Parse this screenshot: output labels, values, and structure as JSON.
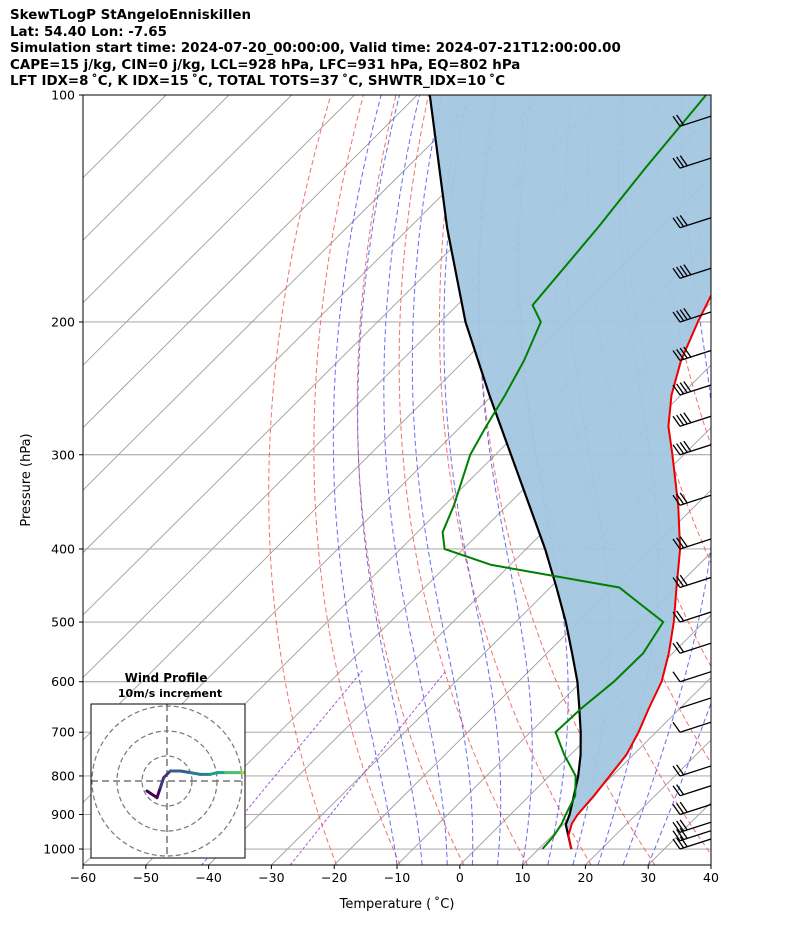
{
  "header": {
    "line1": "SkewTLogP StAngeloEnniskillen",
    "line2": "Lat: 54.40   Lon: -7.65",
    "line3": "Simulation start time: 2024-07-20_00:00:00, Valid time: 2024-07-21T12:00:00.00",
    "line4": "CAPE=15 j/kg, CIN=0 j/kg, LCL=928 hPa, LFC=931 hPa, EQ=802 hPa",
    "line5": "LFT IDX=8 ˚C, K IDX=15 ˚C, TOTAL TOTS=37 ˚C, SHWTR_IDX=10 ˚C"
  },
  "chart_data": {
    "type": "line",
    "subtype": "skew-T log-P",
    "xlabel": "Temperature ( ˚C)",
    "ylabel": "Pressure (hPa)",
    "xlim": [
      -60,
      40
    ],
    "ylim": [
      1050,
      100
    ],
    "y_scale": "log",
    "x_ticks": [
      "−60",
      "−50",
      "−40",
      "−30",
      "−20",
      "−10",
      "0",
      "10",
      "20",
      "30",
      "40"
    ],
    "y_ticks": [
      "100",
      "200",
      "300",
      "400",
      "500",
      "600",
      "700",
      "800",
      "900",
      "1000"
    ],
    "grid": true,
    "colors": {
      "temperature": "#ee0000",
      "dewpoint": "#008000",
      "parcel": "#000000",
      "cape_fill": "#a3c6e0",
      "isotherm": "#9e9e9e",
      "dry_adiabat": "#f06060",
      "moist_adiabat": "#5a5aee",
      "mixing_ratio": "#9a4ad0"
    },
    "series": [
      {
        "key": "temperature",
        "points": [
          [
            1000,
            15.2
          ],
          [
            960,
            12.6
          ],
          [
            925,
            11.2
          ],
          [
            900,
            10.7
          ],
          [
            850,
            10.3
          ],
          [
            800,
            9.6
          ],
          [
            750,
            8.9
          ],
          [
            700,
            7.2
          ],
          [
            650,
            5.0
          ],
          [
            600,
            2.8
          ],
          [
            550,
            -0.6
          ],
          [
            500,
            -4.8
          ],
          [
            450,
            -9.9
          ],
          [
            400,
            -15.5
          ],
          [
            350,
            -22.8
          ],
          [
            300,
            -31.8
          ],
          [
            275,
            -37.0
          ],
          [
            250,
            -41.5
          ],
          [
            225,
            -45.5
          ],
          [
            200,
            -49.0
          ],
          [
            175,
            -52.5
          ],
          [
            150,
            -54.2
          ],
          [
            125,
            -54.5
          ],
          [
            110,
            -57.5
          ],
          [
            100,
            -61.5
          ]
        ]
      },
      {
        "key": "dewpoint",
        "points": [
          [
            1000,
            10.6
          ],
          [
            960,
            10.3
          ],
          [
            925,
            9.6
          ],
          [
            900,
            8.8
          ],
          [
            850,
            7.3
          ],
          [
            800,
            4.2
          ],
          [
            750,
            -1.0
          ],
          [
            700,
            -6.0
          ],
          [
            650,
            -5.7
          ],
          [
            600,
            -4.8
          ],
          [
            550,
            -4.7
          ],
          [
            500,
            -6.5
          ],
          [
            450,
            -19.0
          ],
          [
            420,
            -43.0
          ],
          [
            400,
            -53.0
          ],
          [
            380,
            -56.0
          ],
          [
            350,
            -58.5
          ],
          [
            300,
            -64.0
          ],
          [
            275,
            -66.0
          ],
          [
            250,
            -68.0
          ],
          [
            225,
            -70.5
          ],
          [
            200,
            -74.0
          ],
          [
            190,
            -78.0
          ],
          [
            150,
            -80.0
          ],
          [
            125,
            -82.0
          ],
          [
            100,
            -84.0
          ]
        ]
      },
      {
        "key": "parcel",
        "points": [
          [
            1000,
            15.2
          ],
          [
            928,
            10.4
          ],
          [
            900,
            9.4
          ],
          [
            850,
            7.1
          ],
          [
            800,
            4.6
          ],
          [
            750,
            1.6
          ],
          [
            700,
            -2.0
          ],
          [
            650,
            -6.1
          ],
          [
            600,
            -10.6
          ],
          [
            550,
            -16.0
          ],
          [
            500,
            -22.0
          ],
          [
            450,
            -29.0
          ],
          [
            400,
            -37.0
          ],
          [
            350,
            -46.5
          ],
          [
            300,
            -57.5
          ],
          [
            250,
            -70.5
          ],
          [
            200,
            -86.0
          ],
          [
            150,
            -104.0
          ],
          [
            100,
            -128.0
          ]
        ]
      }
    ],
    "wind_barbs": [
      {
        "p": 1000,
        "barbs": 3
      },
      {
        "p": 975,
        "barbs": 3
      },
      {
        "p": 950,
        "barbs": 3
      },
      {
        "p": 900,
        "barbs": 3
      },
      {
        "p": 850,
        "barbs": 2
      },
      {
        "p": 800,
        "barbs": 2
      },
      {
        "p": 700,
        "barbs": 1
      },
      {
        "p": 650,
        "barbs": 0
      },
      {
        "p": 600,
        "barbs": 1
      },
      {
        "p": 550,
        "barbs": 2
      },
      {
        "p": 500,
        "barbs": 2
      },
      {
        "p": 450,
        "barbs": 3
      },
      {
        "p": 400,
        "barbs": 3
      },
      {
        "p": 350,
        "barbs": 3
      },
      {
        "p": 300,
        "barbs": 4
      },
      {
        "p": 275,
        "barbs": 4
      },
      {
        "p": 250,
        "barbs": 4
      },
      {
        "p": 225,
        "barbs": 4
      },
      {
        "p": 200,
        "barbs": 4
      },
      {
        "p": 175,
        "barbs": 4
      },
      {
        "p": 150,
        "barbs": 3
      },
      {
        "p": 125,
        "barbs": 3
      },
      {
        "p": 110,
        "barbs": 2
      },
      {
        "p": 100,
        "barbs": 2
      }
    ],
    "inset": {
      "title": "Wind Profile",
      "subtitle": "10m/s increment",
      "colormap": "viridis",
      "points": [
        [
          -1.2,
          -0.6
        ],
        [
          -0.6,
          -1.0
        ],
        [
          -0.4,
          -0.4
        ],
        [
          -0.2,
          0.2
        ],
        [
          0.2,
          0.6
        ],
        [
          0.8,
          0.6
        ],
        [
          1.4,
          0.5
        ],
        [
          2.0,
          0.4
        ],
        [
          2.6,
          0.4
        ],
        [
          3.0,
          0.5
        ],
        [
          3.5,
          0.5
        ],
        [
          4.0,
          0.5
        ],
        [
          4.5,
          0.5
        ],
        [
          5.0,
          0.5
        ],
        [
          5.5,
          0.5
        ],
        [
          6.0,
          0.5
        ]
      ]
    }
  }
}
